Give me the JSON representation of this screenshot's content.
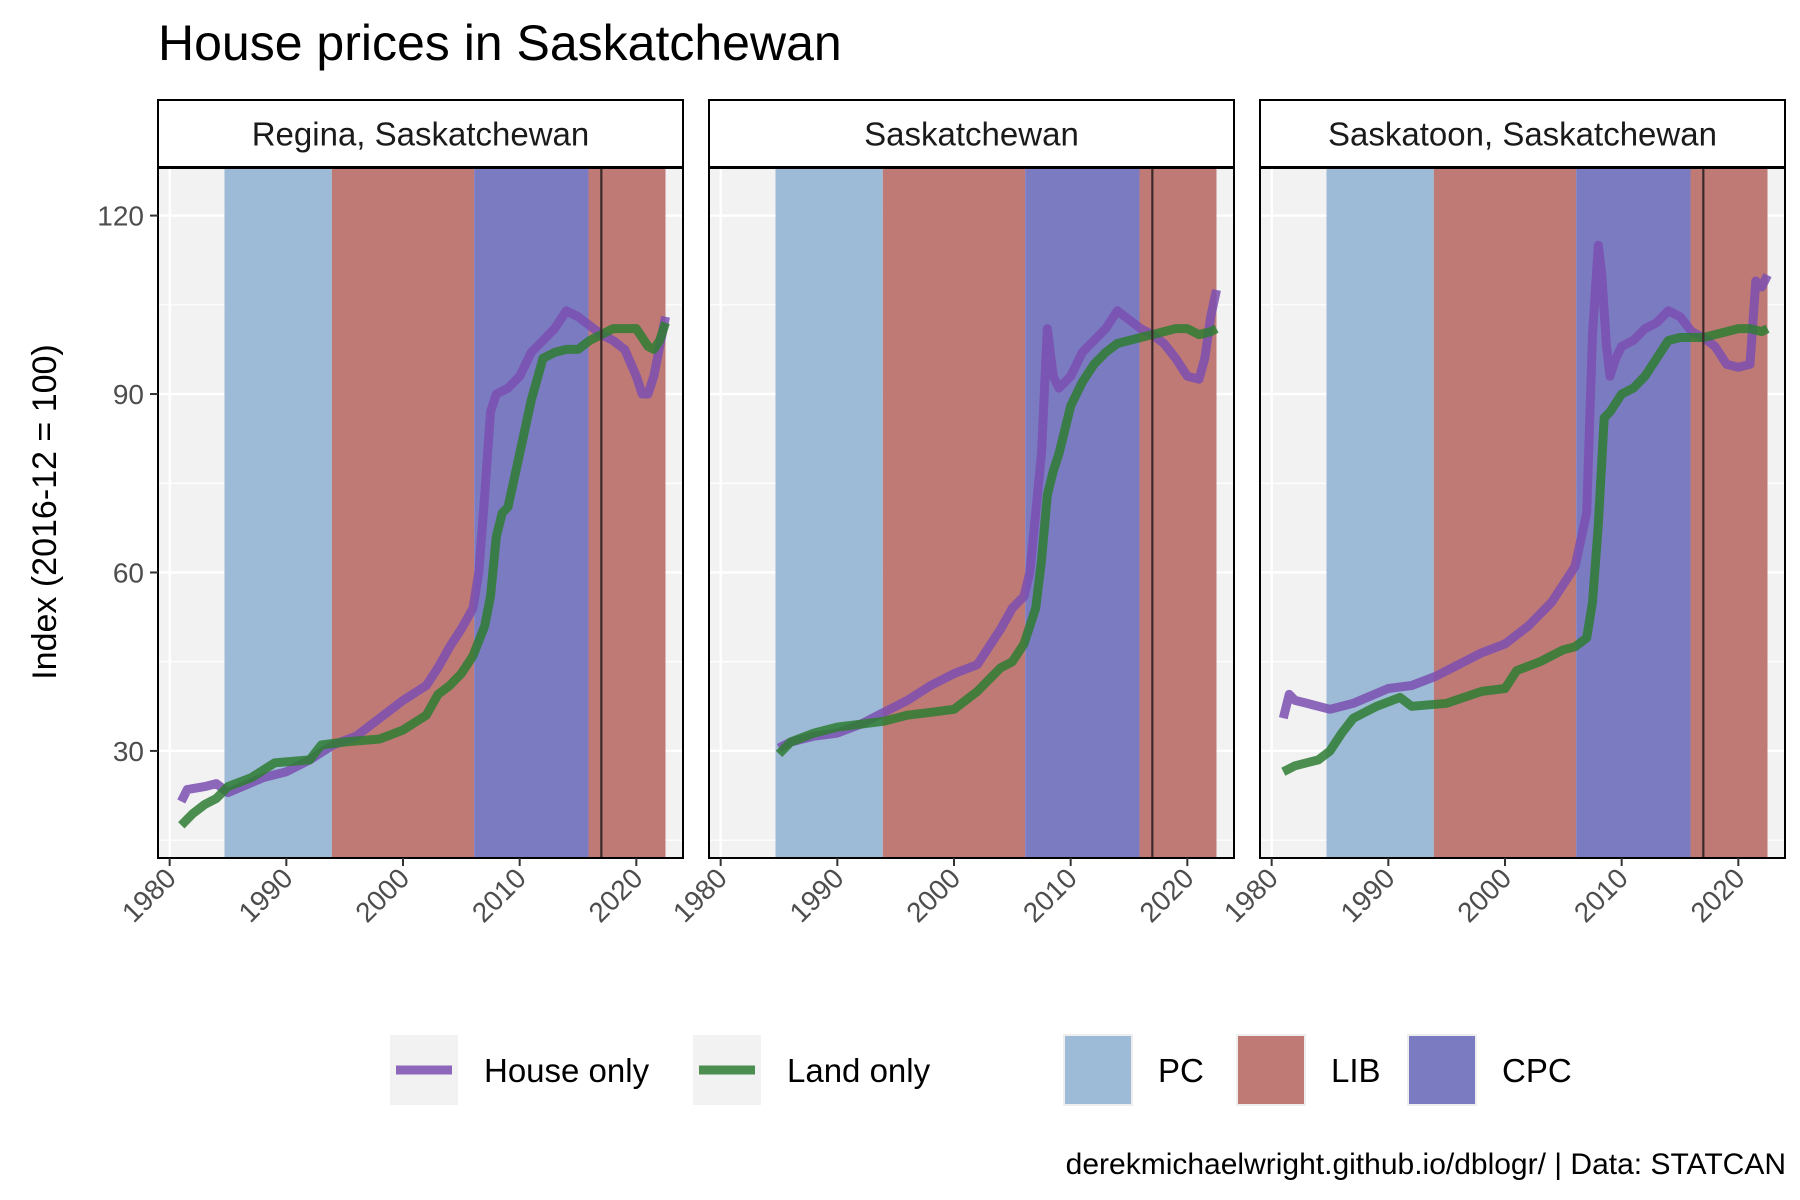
{
  "title": "House prices in Saskatchewan",
  "caption": "derekmichaelwright.github.io/dblogr/ | Data: STATCAN",
  "colors": {
    "house": "#7b4fb0",
    "land": "#2e7d32",
    "PC": "#9dbad6",
    "LIB": "#c07a76",
    "CPC": "#7b7bc2",
    "panel_bg": "#f2f2f2",
    "grid": "#ffffff",
    "vline": "#3a2a2a"
  },
  "legend": {
    "lines": [
      {
        "key": "house",
        "label": "House only"
      },
      {
        "key": "land",
        "label": "Land only"
      }
    ],
    "fills": [
      {
        "key": "PC",
        "label": "PC"
      },
      {
        "key": "LIB",
        "label": "LIB"
      },
      {
        "key": "CPC",
        "label": "CPC"
      }
    ]
  },
  "chart_data": {
    "type": "line",
    "facets": [
      "Regina, Saskatchewan",
      "Saskatchewan",
      "Saskatoon, Saskatchewan"
    ],
    "ylabel": "Index (2016-12 = 100)",
    "xlabel": "",
    "xlim": [
      1979,
      2024
    ],
    "ylim": [
      12,
      128
    ],
    "x_ticks": [
      1980,
      1990,
      2000,
      2010,
      2020
    ],
    "y_ticks": [
      30,
      60,
      90,
      120
    ],
    "reference_line_x": 2017,
    "government_periods": [
      {
        "party": "PC",
        "start": 1984.7,
        "end": 1993.9
      },
      {
        "party": "LIB",
        "start": 1993.9,
        "end": 2006.1
      },
      {
        "party": "CPC",
        "start": 2006.1,
        "end": 2015.9
      },
      {
        "party": "LIB",
        "start": 2015.9,
        "end": 2022.5
      }
    ],
    "panels": [
      {
        "facet": "Regina, Saskatchewan",
        "series": [
          {
            "name": "House only",
            "key": "house",
            "x": [
              1981,
              1981.5,
              1983,
              1984,
              1985,
              1988,
              1990,
              1992,
              1994,
              1996,
              1998,
              2000,
              2002,
              2003,
              2004,
              2005,
              2006,
              2006.5,
              2007,
              2007.5,
              2008,
              2009,
              2010,
              2011,
              2012,
              2013,
              2014,
              2015,
              2016,
              2017,
              2018,
              2019,
              2020,
              2020.5,
              2021,
              2021.5,
              2022,
              2022.5
            ],
            "y": [
              21.5,
              23.5,
              24,
              24.5,
              23,
              25.5,
              26.5,
              28.5,
              31,
              32.5,
              35.5,
              38.5,
              41,
              44,
              47.5,
              50.5,
              54,
              60,
              73,
              87,
              90,
              91,
              93,
              97,
              99,
              101,
              104,
              103,
              101.5,
              100,
              99,
              97.5,
              93,
              90,
              90,
              93,
              98,
              103
            ]
          },
          {
            "name": "Land only",
            "key": "land",
            "x": [
              1981,
              1982,
              1983,
              1984,
              1985,
              1987,
              1989,
              1992,
              1993,
              1995,
              1998,
              2000,
              2002,
              2003,
              2004,
              2005,
              2006,
              2007,
              2007.5,
              2008,
              2008.5,
              2009,
              2010,
              2011,
              2012,
              2013,
              2014,
              2015,
              2016,
              2017,
              2018,
              2019,
              2020,
              2021,
              2021.5,
              2022,
              2022.5
            ],
            "y": [
              17.5,
              19.5,
              21,
              22,
              24,
              25.5,
              28,
              28.5,
              31,
              31.5,
              32,
              33.5,
              36,
              39.5,
              41,
              43,
              46,
              51,
              56,
              66,
              70,
              71,
              80,
              89,
              96,
              97,
              97.5,
              97.5,
              99,
              100,
              101,
              101,
              101,
              98,
              97.5,
              99,
              102
            ]
          }
        ]
      },
      {
        "facet": "Saskatchewan",
        "series": [
          {
            "name": "House only",
            "key": "house",
            "x": [
              1985,
              1986,
              1988,
              1990,
              1992,
              1994,
              1996,
              1998,
              2000,
              2002,
              2003,
              2004,
              2005,
              2006,
              2006.5,
              2007,
              2007.5,
              2008,
              2008.5,
              2009,
              2010,
              2011,
              2012,
              2013,
              2014,
              2015,
              2016,
              2017,
              2018,
              2019,
              2020,
              2021,
              2021.5,
              2022,
              2022.5
            ],
            "y": [
              30.5,
              31.5,
              32.5,
              33,
              34.5,
              36.5,
              38.5,
              41,
              43,
              44.5,
              47.5,
              50.5,
              54,
              56,
              60,
              70,
              80,
              101,
              93,
              91,
              93,
              97,
              99,
              101,
              104,
              102.5,
              101,
              100,
              98.5,
              96,
              93,
              92.5,
              96,
              103,
              107.5
            ]
          },
          {
            "name": "Land only",
            "key": "land",
            "x": [
              1985,
              1986,
              1988,
              1990,
              1992,
              1994,
              1996,
              1998,
              2000,
              2002,
              2004,
              2005,
              2006,
              2007,
              2007.5,
              2008,
              2008.5,
              2009,
              2010,
              2011,
              2012,
              2013,
              2014,
              2015,
              2016,
              2017,
              2018,
              2019,
              2020,
              2021,
              2022,
              2022.5
            ],
            "y": [
              29.5,
              31.5,
              33,
              34,
              34.5,
              35,
              36,
              36.5,
              37,
              40,
              44,
              45,
              48,
              54,
              62,
              73,
              77,
              80,
              88,
              92,
              95,
              97,
              98.5,
              99,
              99.5,
              100,
              100.5,
              101,
              101,
              100,
              100.5,
              101
            ]
          }
        ]
      },
      {
        "facet": "Saskatoon, Saskatchewan",
        "series": [
          {
            "name": "House only",
            "key": "house",
            "x": [
              1981,
              1981.5,
              1982,
              1983,
              1985,
              1987,
              1990,
              1992,
              1994,
              1996,
              1998,
              2000,
              2002,
              2004,
              2005,
              2006,
              2007,
              2007.5,
              2008,
              2008.3,
              2008.7,
              2009,
              2009.5,
              2010,
              2011,
              2012,
              2013,
              2014,
              2015,
              2016,
              2017,
              2018,
              2019,
              2020,
              2021,
              2021.5,
              2022,
              2022.5
            ],
            "y": [
              35.5,
              39.5,
              38.5,
              38,
              37,
              38,
              40.5,
              41,
              42.5,
              44.5,
              46.5,
              48,
              51,
              55,
              58,
              61,
              70,
              100,
              115,
              110,
              98,
              93,
              96,
              98,
              99,
              101,
              102,
              104,
              103,
              100.5,
              99.5,
              98,
              95,
              94.5,
              95,
              109,
              108,
              110
            ]
          },
          {
            "name": "Land only",
            "key": "land",
            "x": [
              1981,
              1982,
              1983,
              1984,
              1985,
              1986,
              1987,
              1989,
              1991,
              1992,
              1995,
              1998,
              2000,
              2001,
              2003,
              2005,
              2006,
              2007,
              2007.5,
              2008,
              2008.5,
              2009,
              2010,
              2011,
              2012,
              2013,
              2014,
              2015,
              2016,
              2017,
              2018,
              2019,
              2020,
              2021,
              2022,
              2022.5
            ],
            "y": [
              26.5,
              27.5,
              28,
              28.5,
              30,
              33,
              35.5,
              37.5,
              39,
              37.5,
              38,
              40,
              40.5,
              43.5,
              45,
              47,
              47.5,
              49,
              55,
              68,
              86,
              87,
              90,
              91,
              93,
              96,
              99,
              99.5,
              99.5,
              99.5,
              100,
              100.5,
              101,
              101,
              100.5,
              101
            ]
          }
        ]
      }
    ]
  }
}
